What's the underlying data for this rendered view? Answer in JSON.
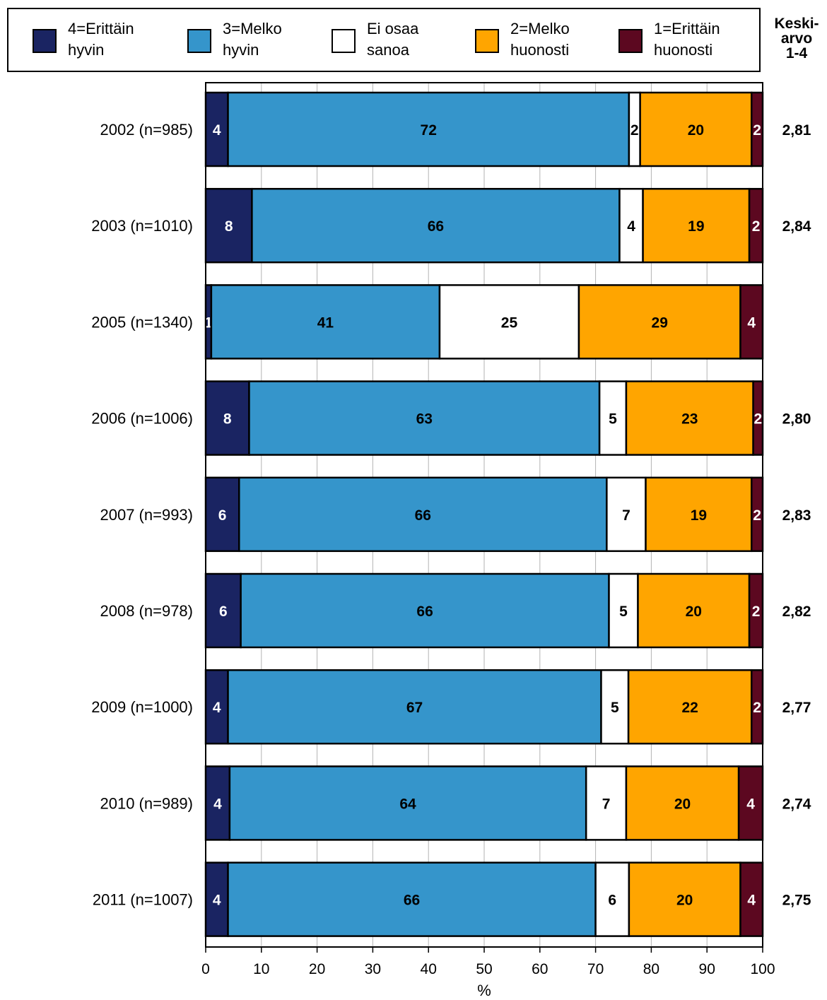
{
  "chart_data": {
    "type": "bar",
    "orientation": "horizontal",
    "stacked": true,
    "categories": [
      "2002 (n=985)",
      "2003 (n=1010)",
      "2005 (n=1340)",
      "2006 (n=1006)",
      "2007 (n=993)",
      "2008 (n=978)",
      "2009 (n=1000)",
      "2010 (n=989)",
      "2011 (n=1007)"
    ],
    "series": [
      {
        "name": "4=Erittäin hyvin",
        "label_lines": [
          "4=Erittäin",
          "hyvin"
        ],
        "color": "#1a2462",
        "text_color": "#ffffff",
        "values": [
          4,
          8.3,
          1,
          7.8,
          6,
          6.3,
          4,
          4.3,
          4
        ]
      },
      {
        "name": "3=Melko hyvin",
        "label_lines": [
          "3=Melko",
          "hyvin"
        ],
        "color": "#3595cb",
        "text_color": "#000000",
        "values": [
          72,
          66,
          41,
          62.9,
          66,
          66.1,
          67,
          64,
          66
        ]
      },
      {
        "name": "Ei osaa sanoa",
        "label_lines": [
          "Ei osaa",
          "sanoa"
        ],
        "color": "#ffffff",
        "text_color": "#000000",
        "values": [
          2,
          4.2,
          25,
          4.8,
          7,
          5.2,
          4.9,
          7.2,
          6
        ]
      },
      {
        "name": "2=Melko huonosti",
        "label_lines": [
          "2=Melko",
          "huonosti"
        ],
        "color": "#ffa500",
        "text_color": "#000000",
        "values": [
          20,
          19.1,
          29,
          22.8,
          19,
          20,
          22.1,
          20.2,
          20
        ]
      },
      {
        "name": "1=Erittäin huonosti",
        "label_lines": [
          "1=Erittäin",
          "huonosti"
        ],
        "color": "#5c0820",
        "text_color": "#ffffff",
        "values": [
          2,
          2.4,
          4,
          1.7,
          2,
          2.4,
          2,
          4.3,
          4
        ]
      }
    ],
    "data_labels": [
      [
        "4",
        "72",
        "2",
        "20",
        "2"
      ],
      [
        "8",
        "66",
        "4",
        "19",
        "2"
      ],
      [
        "1",
        "41",
        "25",
        "29",
        "4"
      ],
      [
        "8",
        "63",
        "5",
        "23",
        "2"
      ],
      [
        "6",
        "66",
        "7",
        "19",
        "2"
      ],
      [
        "6",
        "66",
        "5",
        "20",
        "2"
      ],
      [
        "4",
        "67",
        "5",
        "22",
        "2"
      ],
      [
        "4",
        "64",
        "7",
        "20",
        "4"
      ],
      [
        "4",
        "66",
        "6",
        "20",
        "4"
      ]
    ],
    "mean_header": [
      "Keski-",
      "arvo",
      "1-4"
    ],
    "means": [
      "2,81",
      "2,84",
      "",
      "2,80",
      "2,83",
      "2,82",
      "2,77",
      "2,74",
      "2,75"
    ],
    "xlabel": "%",
    "xlim": [
      0,
      100
    ],
    "xticks": [
      0,
      10,
      20,
      30,
      40,
      50,
      60,
      70,
      80,
      90,
      100
    ],
    "grid": "vertical",
    "legend_position": "top"
  }
}
